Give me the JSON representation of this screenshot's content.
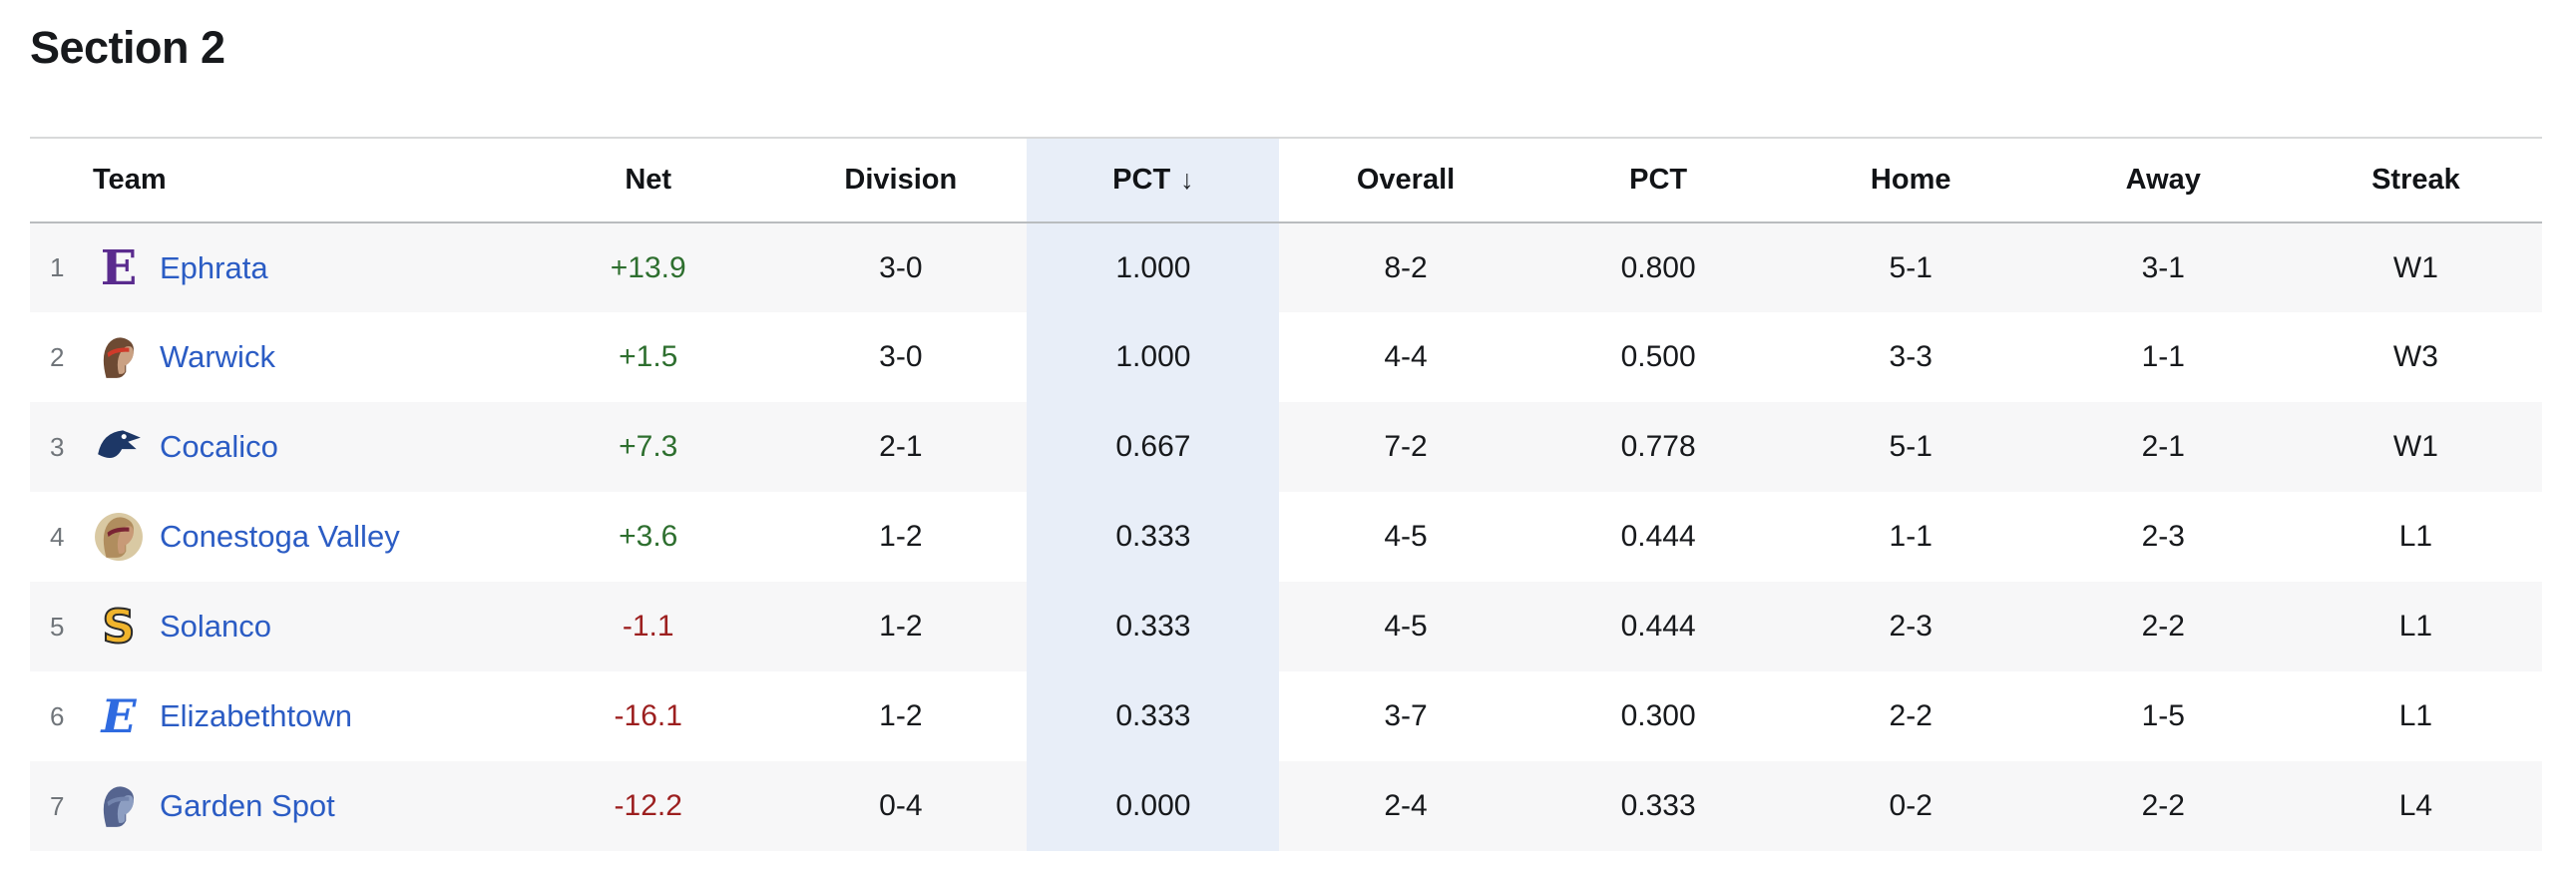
{
  "page": {
    "title": "Section 2"
  },
  "colors": {
    "link_blue": "#2b5cc4",
    "net_positive": "#2e6f2f",
    "net_negative": "#9c1f1f",
    "row_stripe": "#f7f7f8",
    "sorted_column_highlight": "#e8eef8",
    "header_border": "#b9bcbf",
    "top_border": "#d8d9da"
  },
  "table": {
    "sort_indicator": "↓",
    "columns": [
      {
        "key": "team",
        "label": "Team"
      },
      {
        "key": "net",
        "label": "Net"
      },
      {
        "key": "division",
        "label": "Division"
      },
      {
        "key": "pct",
        "label": "PCT",
        "sorted": true,
        "sort_direction": "desc"
      },
      {
        "key": "overall",
        "label": "Overall"
      },
      {
        "key": "overall_pct",
        "label": "PCT"
      },
      {
        "key": "home",
        "label": "Home"
      },
      {
        "key": "away",
        "label": "Away"
      },
      {
        "key": "streak",
        "label": "Streak"
      }
    ],
    "rows": [
      {
        "rank": 1,
        "team": "Ephrata",
        "net": "+13.9",
        "division": "3-0",
        "pct": "1.000",
        "overall": "8-2",
        "overall_pct": "0.800",
        "home": "5-1",
        "away": "3-1",
        "streak": "W1",
        "logo": {
          "kind": "letter",
          "text": "E",
          "style": "blackletter",
          "color": "#5a2b8e",
          "icon_name": "ephrata-purple-blackletter-e-logo"
        }
      },
      {
        "rank": 2,
        "team": "Warwick",
        "net": "+1.5",
        "division": "3-0",
        "pct": "1.000",
        "overall": "4-4",
        "overall_pct": "0.500",
        "home": "3-3",
        "away": "1-1",
        "streak": "W3",
        "logo": {
          "kind": "head",
          "back": "#6d4a33",
          "face": "#caa183",
          "accent": "#cf3a2a",
          "icon_name": "warwick-warrior-head-logo"
        }
      },
      {
        "rank": 3,
        "team": "Cocalico",
        "net": "+7.3",
        "division": "2-1",
        "pct": "0.667",
        "overall": "7-2",
        "overall_pct": "0.778",
        "home": "5-1",
        "away": "2-1",
        "streak": "W1",
        "logo": {
          "kind": "eagle",
          "color": "#1d3766",
          "icon_name": "cocalico-eagle-head-logo"
        }
      },
      {
        "rank": 4,
        "team": "Conestoga Valley",
        "net": "+3.6",
        "division": "1-2",
        "pct": "0.333",
        "overall": "4-5",
        "overall_pct": "0.444",
        "home": "1-1",
        "away": "2-3",
        "streak": "L1",
        "logo": {
          "kind": "head",
          "back": "#b08d5e",
          "face": "#c89a77",
          "accent": "#7a2433",
          "ring": "#d9c9a3",
          "icon_name": "conestoga-valley-pioneer-head-logo"
        }
      },
      {
        "rank": 5,
        "team": "Solanco",
        "net": "-1.1",
        "division": "1-2",
        "pct": "0.333",
        "overall": "4-5",
        "overall_pct": "0.444",
        "home": "2-3",
        "away": "2-2",
        "streak": "L1",
        "logo": {
          "kind": "letter",
          "text": "S",
          "style": "block",
          "color": "#f0b42c",
          "icon_name": "solanco-gold-s-logo"
        }
      },
      {
        "rank": 6,
        "team": "Elizabethtown",
        "net": "-16.1",
        "division": "1-2",
        "pct": "0.333",
        "overall": "3-7",
        "overall_pct": "0.300",
        "home": "2-2",
        "away": "1-5",
        "streak": "L1",
        "logo": {
          "kind": "letter",
          "text": "E",
          "style": "script",
          "color": "#2f6be0",
          "icon_name": "elizabethtown-blue-script-e-logo"
        }
      },
      {
        "rank": 7,
        "team": "Garden Spot",
        "net": "-12.2",
        "division": "0-4",
        "pct": "0.000",
        "overall": "2-4",
        "overall_pct": "0.333",
        "home": "0-2",
        "away": "2-2",
        "streak": "L4",
        "logo": {
          "kind": "head",
          "back": "#55648f",
          "face": "#8d9ec2",
          "accent": "#7384ad",
          "icon_name": "garden-spot-spartan-head-logo"
        }
      }
    ]
  }
}
